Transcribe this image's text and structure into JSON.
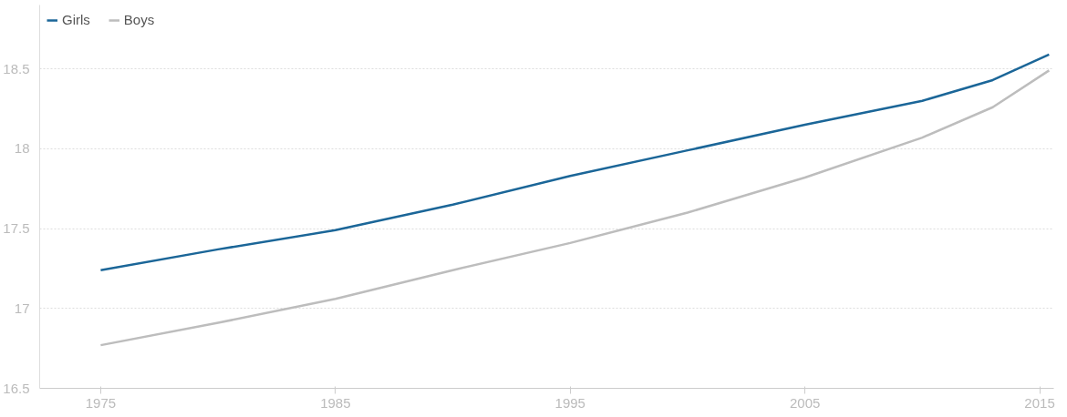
{
  "chart_data": {
    "type": "line",
    "x": [
      1975,
      1980,
      1985,
      1990,
      1995,
      2000,
      2005,
      2010,
      2013,
      2015.4
    ],
    "series": [
      {
        "name": "Girls",
        "color": "#1b6698",
        "values": [
          17.24,
          17.37,
          17.49,
          17.65,
          17.83,
          17.99,
          18.15,
          18.3,
          18.43,
          18.59
        ]
      },
      {
        "name": "Boys",
        "color": "#bdbdbd",
        "values": [
          16.77,
          16.91,
          17.06,
          17.24,
          17.41,
          17.6,
          17.82,
          18.07,
          18.26,
          18.49
        ]
      }
    ],
    "xlim": [
      1972.4,
      2015.6
    ],
    "ylim": [
      16.5,
      18.9
    ],
    "xticks": [
      1975,
      1985,
      1995,
      2005,
      2015
    ],
    "yticks": [
      16.5,
      17,
      17.5,
      18,
      18.5
    ],
    "grid": "y",
    "legend": "top left",
    "marker": "none",
    "line_style": "solid"
  }
}
